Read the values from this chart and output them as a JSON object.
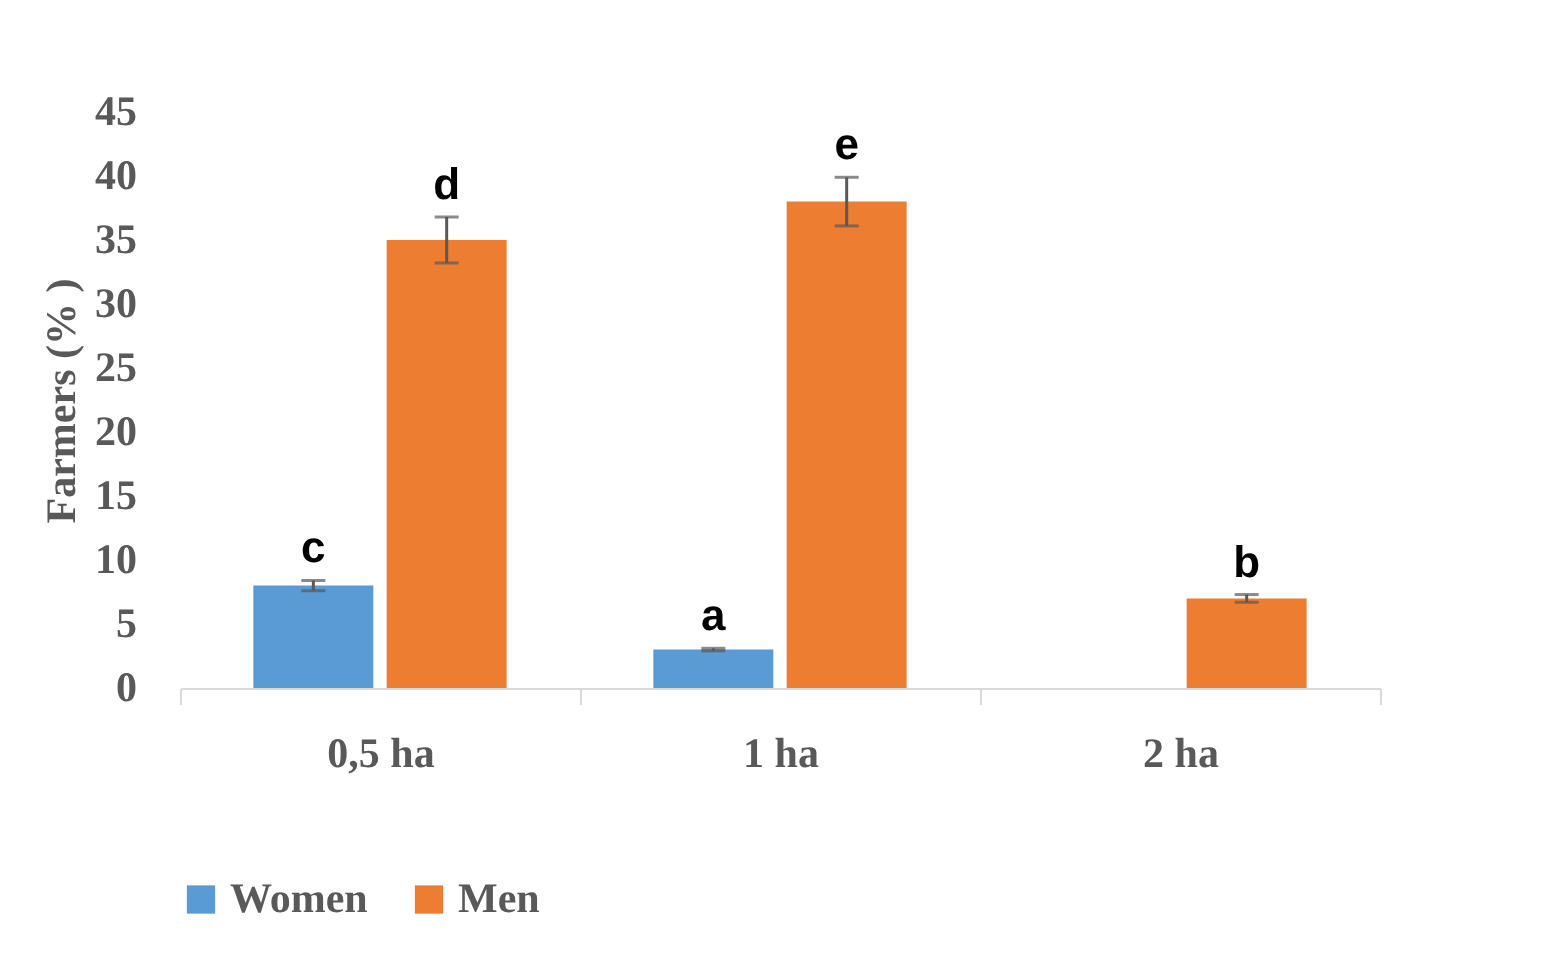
{
  "chart_data": {
    "type": "bar",
    "ylabel": "Farmers (% )",
    "categories": [
      "0,5 ha",
      "1 ha",
      "2 ha"
    ],
    "series": [
      {
        "name": "Women",
        "color": "#5b9bd5",
        "values": [
          8,
          3,
          0
        ],
        "errors": [
          0.4,
          0.1,
          null
        ]
      },
      {
        "name": "Men",
        "color": "#ed7d31",
        "values": [
          35,
          38,
          7
        ],
        "errors": [
          1.8,
          1.9,
          0.3
        ]
      }
    ],
    "ylim": [
      0,
      45
    ],
    "yticks": [
      0,
      5,
      10,
      15,
      20,
      25,
      30,
      35,
      40,
      45
    ],
    "grid": false,
    "legend": "bottom",
    "annotations": [
      {
        "text": "c",
        "x": "0,5 ha",
        "y": 8
      },
      {
        "text": "d",
        "x": "0,5 ha",
        "y": 35
      },
      {
        "text": "a",
        "x": "1 ha",
        "y": 3
      },
      {
        "text": "e",
        "x": "1 ha",
        "y": 38
      },
      {
        "text": "b",
        "x": "2 ha",
        "y": 7
      }
    ]
  }
}
